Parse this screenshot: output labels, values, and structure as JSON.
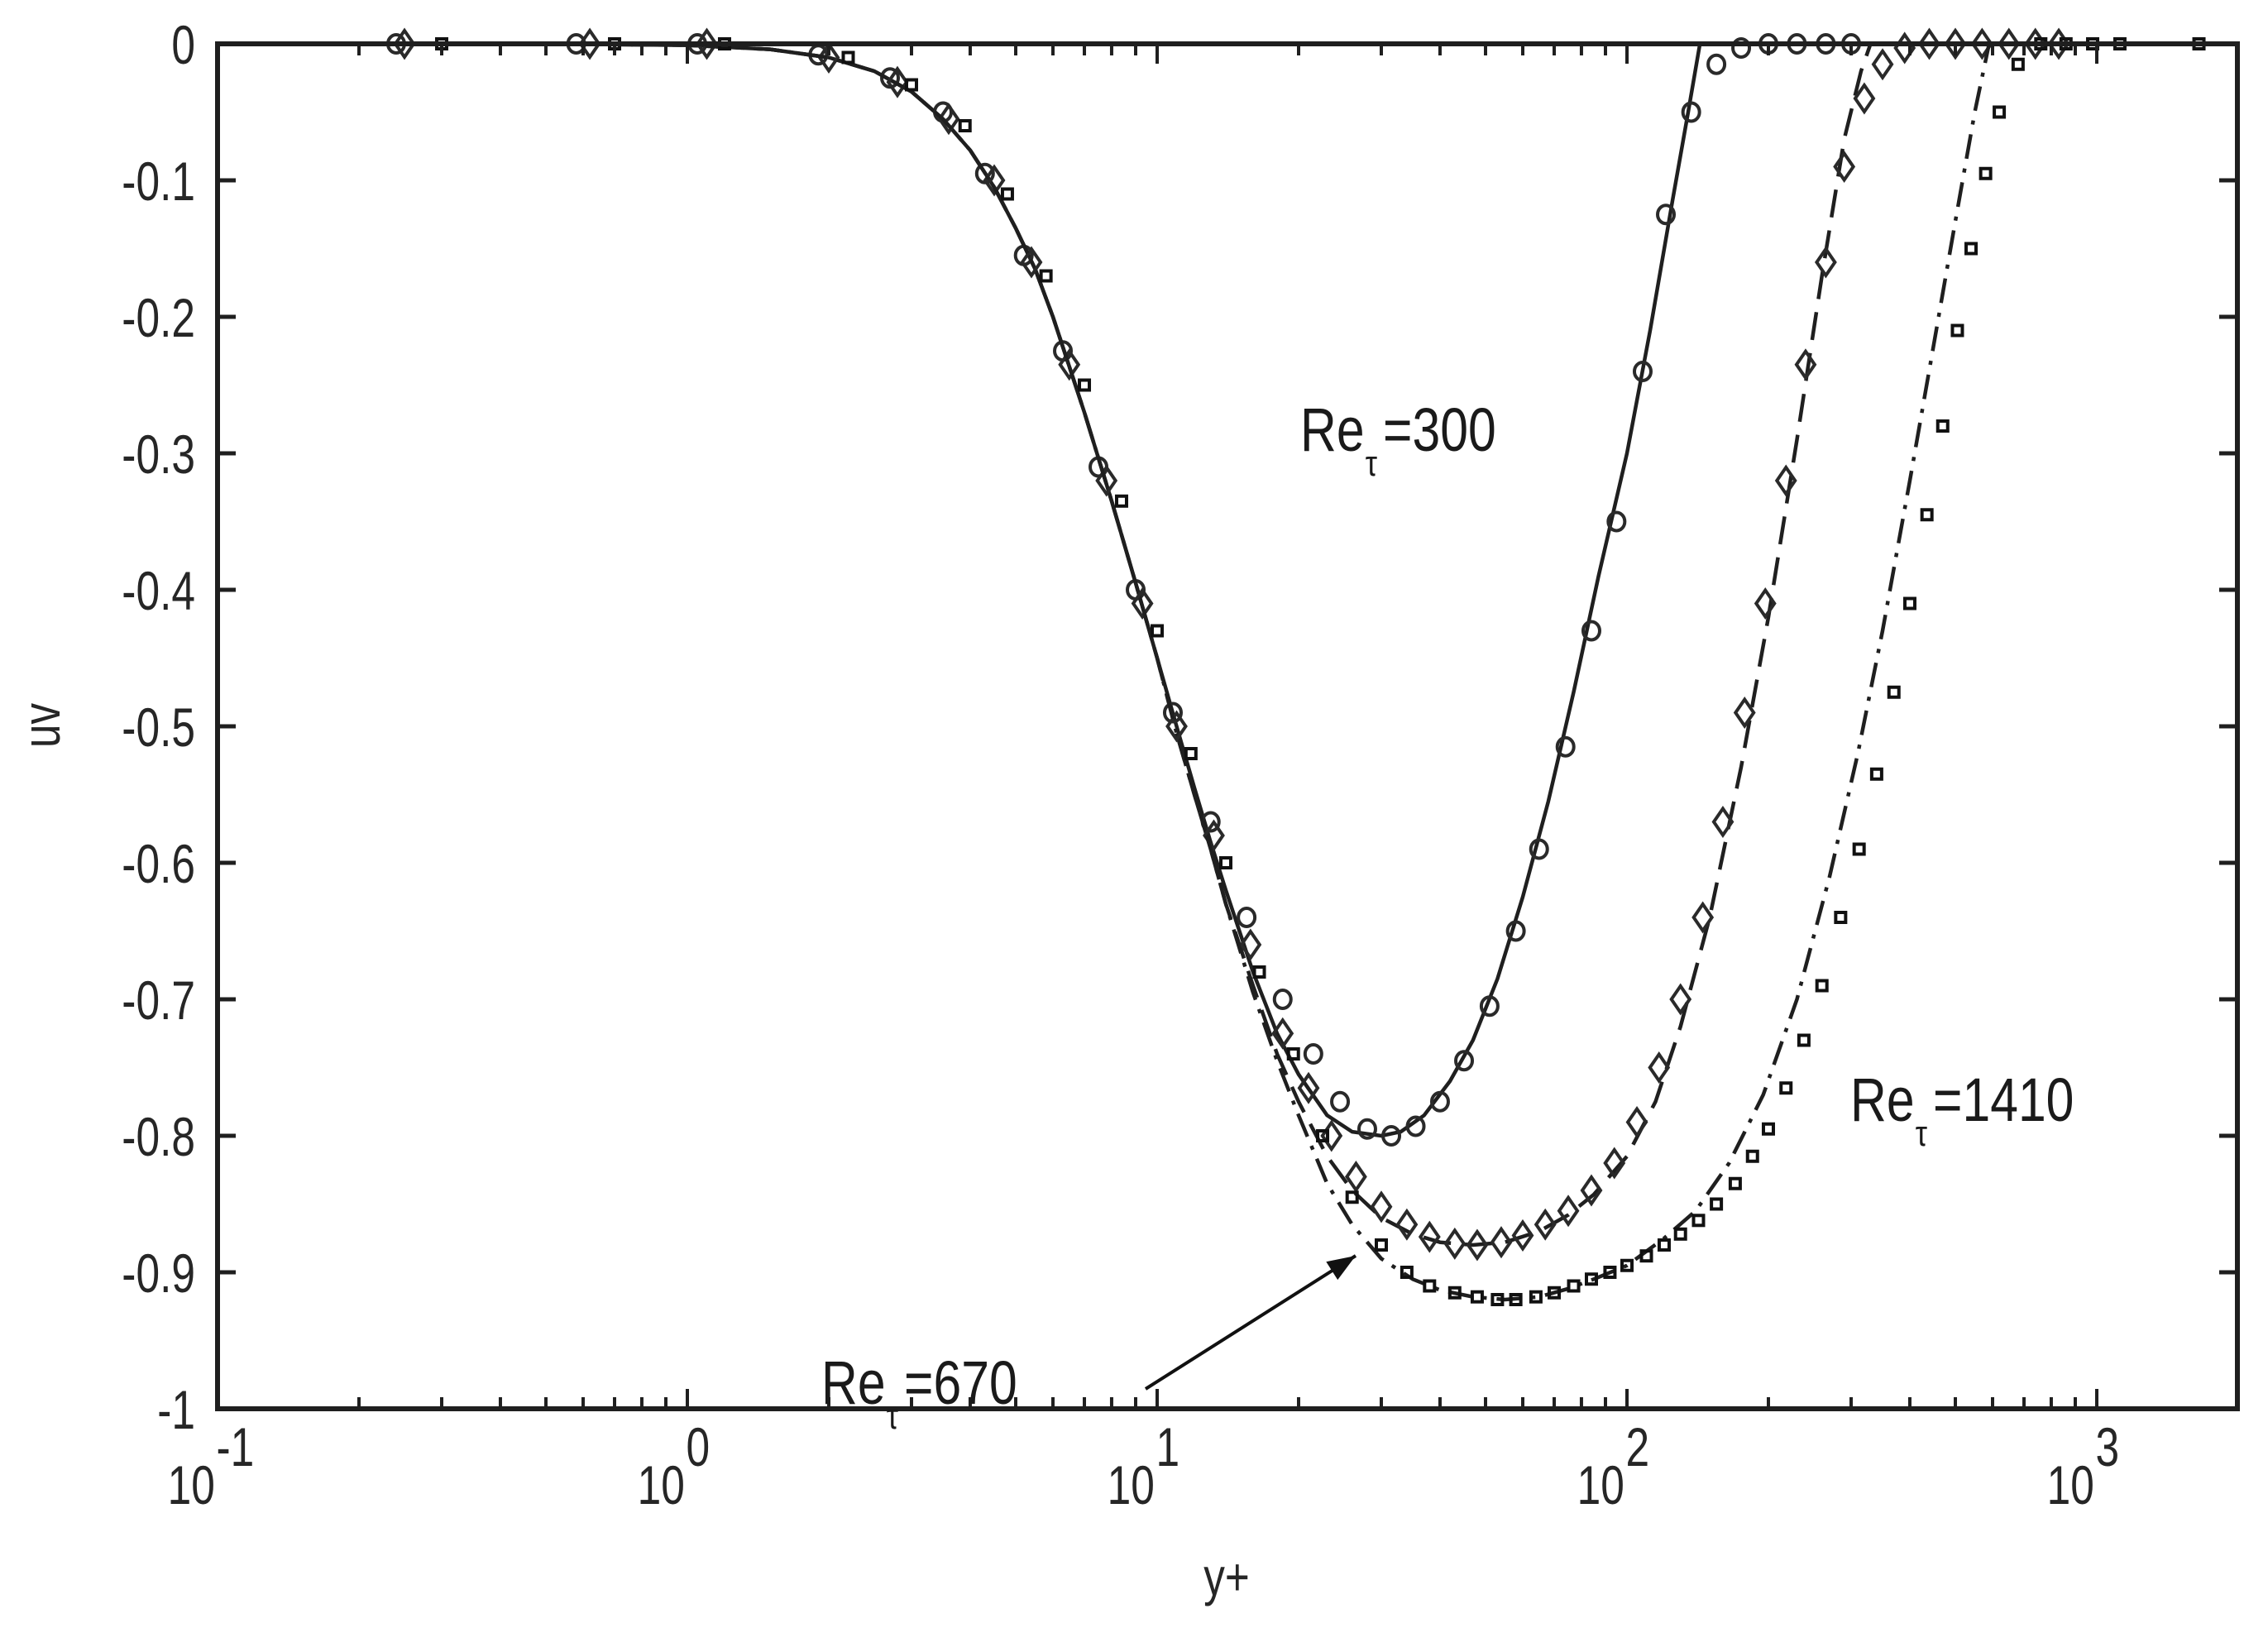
{
  "chart_data": {
    "type": "line",
    "title": "",
    "xlabel": "y+",
    "ylabel": "uv",
    "xscale": "log",
    "xlim": [
      0.1,
      2000
    ],
    "ylim": [
      -1,
      0
    ],
    "grid": false,
    "legend": null,
    "x_ticks": [
      {
        "value": 0.1,
        "base": "10",
        "exp": "-1"
      },
      {
        "value": 1,
        "base": "10",
        "exp": "0"
      },
      {
        "value": 10,
        "base": "10",
        "exp": "1"
      },
      {
        "value": 100,
        "base": "10",
        "exp": "2"
      },
      {
        "value": 1000,
        "base": "10",
        "exp": "3"
      }
    ],
    "y_ticks": [
      {
        "value": 0,
        "label": "0"
      },
      {
        "value": -0.1,
        "label": "-0.1"
      },
      {
        "value": -0.2,
        "label": "-0.2"
      },
      {
        "value": -0.3,
        "label": "-0.3"
      },
      {
        "value": -0.4,
        "label": "-0.4"
      },
      {
        "value": -0.5,
        "label": "-0.5"
      },
      {
        "value": -0.6,
        "label": "-0.6"
      },
      {
        "value": -0.7,
        "label": "-0.7"
      },
      {
        "value": -0.8,
        "label": "-0.8"
      },
      {
        "value": -0.9,
        "label": "-0.9"
      },
      {
        "value": -1,
        "label": "-1"
      }
    ],
    "series": [
      {
        "name": "Re_tau=300",
        "line_style": "solid",
        "marker": "circle",
        "line": {
          "x": [
            0.1,
            0.5,
            1.0,
            1.5,
            2.0,
            2.5,
            3.0,
            3.5,
            4.0,
            4.5,
            5.0,
            5.5,
            6.0,
            7.0,
            8.0,
            9.0,
            10.0,
            11.0,
            12.0,
            13.0,
            14.0,
            16.0,
            18.0,
            20.0,
            23.0,
            26.0,
            30.0,
            33.0,
            37.0,
            42.0,
            47.0,
            53.0,
            60.0,
            68.0,
            77.0,
            87.0,
            100.0,
            112.0,
            125.0,
            135.0,
            143.0
          ],
          "y": [
            0,
            0,
            -0.001,
            -0.004,
            -0.01,
            -0.02,
            -0.035,
            -0.055,
            -0.078,
            -0.105,
            -0.135,
            -0.165,
            -0.2,
            -0.27,
            -0.335,
            -0.395,
            -0.45,
            -0.5,
            -0.545,
            -0.585,
            -0.62,
            -0.68,
            -0.725,
            -0.755,
            -0.785,
            -0.797,
            -0.8,
            -0.797,
            -0.785,
            -0.76,
            -0.73,
            -0.685,
            -0.625,
            -0.555,
            -0.475,
            -0.39,
            -0.3,
            -0.21,
            -0.115,
            -0.05,
            0
          ]
        },
        "markers": {
          "x": [
            0.24,
            0.58,
            1.05,
            1.9,
            2.7,
            3.5,
            4.3,
            5.2,
            6.3,
            7.5,
            9.0,
            10.8,
            13.0,
            15.5,
            18.5,
            21.5,
            24.5,
            28.0,
            31.5,
            35.5,
            40.0,
            45.0,
            51.0,
            58.0,
            65.0,
            74.0,
            84.0,
            95.0,
            108.0,
            121.0,
            137.0,
            155.0,
            175.0,
            200.0,
            230.0,
            265.0,
            300.0
          ],
          "y": [
            0,
            0,
            0,
            -0.008,
            -0.025,
            -0.05,
            -0.095,
            -0.155,
            -0.225,
            -0.31,
            -0.4,
            -0.49,
            -0.57,
            -0.64,
            -0.7,
            -0.74,
            -0.775,
            -0.795,
            -0.8,
            -0.793,
            -0.775,
            -0.745,
            -0.705,
            -0.65,
            -0.59,
            -0.515,
            -0.43,
            -0.35,
            -0.24,
            -0.125,
            -0.05,
            -0.015,
            -0.003,
            0,
            0,
            0,
            0
          ]
        }
      },
      {
        "name": "Re_tau=670",
        "line_style": "dashed",
        "marker": "diamond",
        "line": {
          "x": [
            0.1,
            0.5,
            1.0,
            1.5,
            2.0,
            2.5,
            3.0,
            3.5,
            4.0,
            4.5,
            5.0,
            5.5,
            6.0,
            7.0,
            8.0,
            9.0,
            10.0,
            11.0,
            12.0,
            13.0,
            14.0,
            16.0,
            18.0,
            20.0,
            23.0,
            26.0,
            30.0,
            35.0,
            40.0,
            47.0,
            55.0,
            65.0,
            75.0,
            85.0,
            100.0,
            115.0,
            130.0,
            150.0,
            175.0,
            200.0,
            230.0,
            260.0,
            290.0,
            315.0,
            330.0
          ],
          "y": [
            0,
            0,
            -0.001,
            -0.004,
            -0.01,
            -0.02,
            -0.035,
            -0.055,
            -0.078,
            -0.105,
            -0.135,
            -0.165,
            -0.2,
            -0.27,
            -0.335,
            -0.395,
            -0.45,
            -0.505,
            -0.55,
            -0.59,
            -0.63,
            -0.69,
            -0.74,
            -0.775,
            -0.815,
            -0.84,
            -0.86,
            -0.872,
            -0.878,
            -0.88,
            -0.878,
            -0.87,
            -0.858,
            -0.843,
            -0.815,
            -0.775,
            -0.72,
            -0.64,
            -0.53,
            -0.42,
            -0.29,
            -0.17,
            -0.07,
            -0.02,
            0
          ]
        },
        "markers": {
          "x": [
            0.25,
            0.62,
            1.1,
            2.0,
            2.8,
            3.6,
            4.5,
            5.4,
            6.5,
            7.8,
            9.3,
            11.0,
            13.2,
            15.8,
            18.5,
            21.0,
            23.5,
            26.5,
            30.0,
            34.0,
            38.0,
            43.0,
            48.0,
            54.0,
            60.0,
            67.0,
            75.0,
            84.0,
            94.0,
            105.0,
            117.0,
            130.0,
            145.0,
            160.0,
            178.0,
            197.0,
            218.0,
            240.0,
            265.0,
            290.0,
            320.0,
            350.0,
            390.0,
            440.0,
            500.0,
            570.0,
            650.0,
            740.0,
            830.0
          ],
          "y": [
            0,
            0,
            0,
            -0.01,
            -0.028,
            -0.055,
            -0.1,
            -0.16,
            -0.235,
            -0.32,
            -0.41,
            -0.5,
            -0.58,
            -0.66,
            -0.725,
            -0.765,
            -0.8,
            -0.83,
            -0.852,
            -0.865,
            -0.874,
            -0.879,
            -0.88,
            -0.878,
            -0.873,
            -0.865,
            -0.855,
            -0.84,
            -0.82,
            -0.79,
            -0.75,
            -0.7,
            -0.64,
            -0.57,
            -0.49,
            -0.41,
            -0.32,
            -0.235,
            -0.16,
            -0.09,
            -0.04,
            -0.015,
            -0.003,
            0,
            0,
            0,
            0,
            0,
            0
          ]
        }
      },
      {
        "name": "Re_tau=1410",
        "line_style": "dashdot",
        "marker": "square",
        "line": {
          "x": [
            0.1,
            0.5,
            1.0,
            1.5,
            2.0,
            2.5,
            3.0,
            3.5,
            4.0,
            4.5,
            5.0,
            5.5,
            6.0,
            7.0,
            8.0,
            9.0,
            10.0,
            11.0,
            12.0,
            13.0,
            14.0,
            16.0,
            18.0,
            20.0,
            23.0,
            26.0,
            30.0,
            35.0,
            40.0,
            47.0,
            55.0,
            65.0,
            75.0,
            85.0,
            100.0,
            120.0,
            140.0,
            165.0,
            195.0,
            230.0,
            270.0,
            310.0,
            350.0,
            400.0,
            450.0,
            500.0,
            550.0,
            590.0
          ],
          "y": [
            0,
            0,
            -0.001,
            -0.004,
            -0.01,
            -0.02,
            -0.035,
            -0.055,
            -0.078,
            -0.105,
            -0.135,
            -0.165,
            -0.2,
            -0.27,
            -0.335,
            -0.395,
            -0.45,
            -0.505,
            -0.55,
            -0.59,
            -0.63,
            -0.695,
            -0.745,
            -0.785,
            -0.835,
            -0.865,
            -0.89,
            -0.905,
            -0.913,
            -0.918,
            -0.92,
            -0.918,
            -0.912,
            -0.905,
            -0.895,
            -0.875,
            -0.855,
            -0.82,
            -0.77,
            -0.7,
            -0.61,
            -0.52,
            -0.43,
            -0.32,
            -0.22,
            -0.13,
            -0.05,
            0
          ]
        },
        "markers": {
          "x": [
            0.3,
            0.7,
            1.2,
            2.2,
            3.0,
            3.9,
            4.8,
            5.8,
            7.0,
            8.4,
            10.0,
            11.8,
            14.0,
            16.5,
            19.5,
            22.5,
            26.0,
            30.0,
            34.0,
            38.0,
            43.0,
            48.0,
            53.0,
            58.0,
            64.0,
            70.0,
            77.0,
            84.0,
            92.0,
            100.0,
            110.0,
            120.0,
            130.0,
            142.0,
            155.0,
            170.0,
            185.0,
            200.0,
            218.0,
            238.0,
            260.0,
            285.0,
            312.0,
            340.0,
            370.0,
            400.0,
            435.0,
            470.0,
            505.0,
            540.0,
            580.0,
            620.0,
            680.0,
            760.0,
            860.0,
            980.0,
            1120.0,
            1650.0
          ],
          "y": [
            0,
            0,
            0,
            -0.01,
            -0.03,
            -0.06,
            -0.11,
            -0.17,
            -0.25,
            -0.335,
            -0.43,
            -0.52,
            -0.6,
            -0.68,
            -0.74,
            -0.8,
            -0.845,
            -0.88,
            -0.9,
            -0.91,
            -0.915,
            -0.918,
            -0.92,
            -0.92,
            -0.918,
            -0.915,
            -0.91,
            -0.905,
            -0.9,
            -0.895,
            -0.888,
            -0.88,
            -0.872,
            -0.862,
            -0.85,
            -0.835,
            -0.815,
            -0.795,
            -0.765,
            -0.73,
            -0.69,
            -0.64,
            -0.59,
            -0.535,
            -0.475,
            -0.41,
            -0.345,
            -0.28,
            -0.21,
            -0.15,
            -0.095,
            -0.05,
            -0.015,
            0,
            0,
            0,
            0,
            0
          ]
        }
      }
    ],
    "annotations": [
      {
        "id": "re300",
        "base": "Re",
        "sub": "τ",
        "rest": "=300",
        "x": 1572,
        "y": 545
      },
      {
        "id": "re1410",
        "base": "Re",
        "sub": "τ",
        "rest": "=1410",
        "x": 2237,
        "y": 1355
      },
      {
        "id": "re670",
        "base": "Re",
        "sub": "τ",
        "rest": "=670",
        "x": 993,
        "y": 1697
      }
    ],
    "arrow": {
      "from": [
        1385,
        1679
      ],
      "to": [
        1639,
        1518
      ],
      "label_ref": "Re_tau=670"
    }
  }
}
